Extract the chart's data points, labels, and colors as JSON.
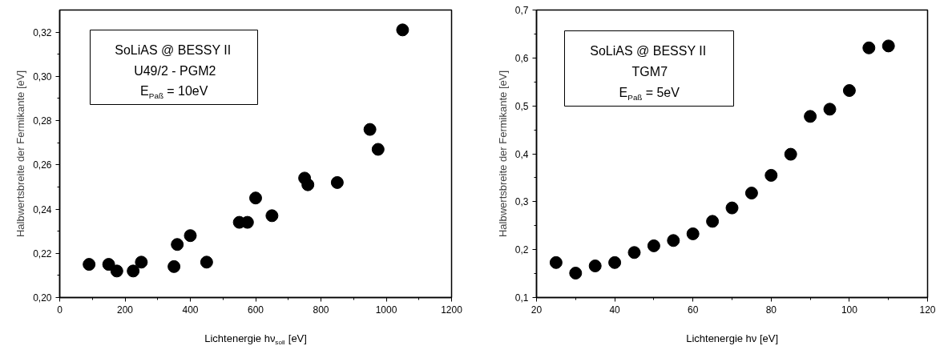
{
  "chart_data": [
    {
      "type": "scatter",
      "xlabel": "Lichtenergie hν$_{soll}$ [eV]",
      "ylabel": "Halbwertsbreite der Fermikante [eV]",
      "annotations": [
        "SoLiAS @ BESSY II",
        "U49/2 - PGM2",
        "E$_{Paß}$ = 10eV"
      ],
      "marker": "circle",
      "xlim": [
        0,
        1200
      ],
      "ylim": [
        0.2,
        0.33
      ],
      "xticks": [
        0,
        200,
        400,
        600,
        800,
        1000,
        1200
      ],
      "yticks": [
        {
          "value": 0.2,
          "label": "0,20"
        },
        {
          "value": 0.22,
          "label": "0,22"
        },
        {
          "value": 0.24,
          "label": "0,24"
        },
        {
          "value": 0.26,
          "label": "0,26"
        },
        {
          "value": 0.28,
          "label": "0,28"
        },
        {
          "value": 0.3,
          "label": "0,30"
        },
        {
          "value": 0.32,
          "label": "0,32"
        }
      ],
      "series": [
        {
          "color": "#000000",
          "x": [
            90,
            150,
            175,
            225,
            250,
            350,
            360,
            400,
            450,
            550,
            575,
            600,
            650,
            750,
            760,
            850,
            950,
            975,
            1050
          ],
          "values": [
            0.215,
            0.215,
            0.212,
            0.212,
            0.216,
            0.214,
            0.224,
            0.228,
            0.216,
            0.234,
            0.234,
            0.245,
            0.237,
            0.254,
            0.251,
            0.252,
            0.276,
            0.267,
            0.321
          ]
        }
      ]
    },
    {
      "type": "scatter",
      "xlabel": "Lichtenergie hν [eV]",
      "ylabel": "Halbwertsbreite der Fermikante [eV]",
      "annotations": [
        "SoLiAS @ BESSY II",
        "TGM7",
        "E$_{Paß}$ = 5eV"
      ],
      "marker": "circle",
      "xlim": [
        20,
        120
      ],
      "ylim": [
        0.1,
        0.7
      ],
      "xticks": [
        20,
        40,
        60,
        80,
        100,
        120
      ],
      "yticks": [
        {
          "value": 0.1,
          "label": "0,1"
        },
        {
          "value": 0.2,
          "label": "0,2"
        },
        {
          "value": 0.3,
          "label": "0,3"
        },
        {
          "value": 0.4,
          "label": "0,4"
        },
        {
          "value": 0.5,
          "label": "0,5"
        },
        {
          "value": 0.6,
          "label": "0,6"
        },
        {
          "value": 0.7,
          "label": "0,7"
        }
      ],
      "series": [
        {
          "color": "#000000",
          "x": [
            25,
            30,
            35,
            40,
            45,
            50,
            55,
            60,
            65,
            70,
            75,
            80,
            85,
            90,
            95,
            100,
            105,
            110
          ],
          "values": [
            0.173,
            0.151,
            0.166,
            0.173,
            0.194,
            0.208,
            0.219,
            0.233,
            0.259,
            0.287,
            0.318,
            0.355,
            0.399,
            0.478,
            0.493,
            0.532,
            0.621,
            0.625
          ]
        }
      ]
    }
  ]
}
